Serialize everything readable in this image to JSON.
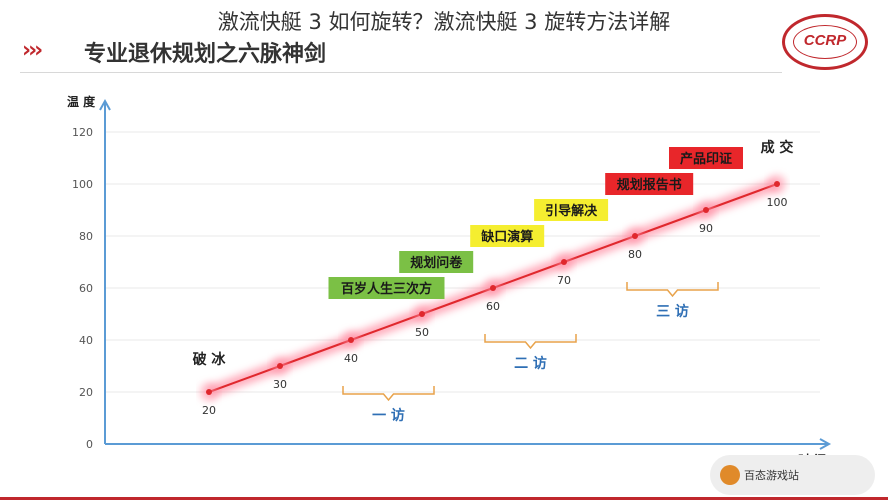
{
  "page": {
    "overlay_title": "激流快艇 3 如何旋转？激流快艇 3 旋转方法详解",
    "chevrons": "›››",
    "slide_title": "专业退休规划之六脉神剑",
    "logo_text": "CCRP",
    "watermark_text": "百态游戏站"
  },
  "colors": {
    "accent_red": "#c0282d",
    "line": "#e0282d",
    "glow": "#ff8aa0",
    "axis": "#5b9bd5",
    "bracket": "#e8a24a",
    "visit_text": "#2f6fb5",
    "grid": "#e8e8e8"
  },
  "chart_data": {
    "type": "line",
    "title": "",
    "xlabel": "时 间",
    "ylabel": "温 度",
    "ylim": [
      0,
      120
    ],
    "yticks": [
      0,
      20,
      40,
      60,
      80,
      100,
      120
    ],
    "grid": true,
    "points": [
      {
        "x": 1,
        "y": 20,
        "label": "20"
      },
      {
        "x": 2,
        "y": 30,
        "label": "30"
      },
      {
        "x": 3,
        "y": 40,
        "label": "40"
      },
      {
        "x": 4,
        "y": 50,
        "label": "50"
      },
      {
        "x": 5,
        "y": 60,
        "label": "60"
      },
      {
        "x": 6,
        "y": 70,
        "label": "70"
      },
      {
        "x": 7,
        "y": 80,
        "label": "80"
      },
      {
        "x": 8,
        "y": 90,
        "label": "90"
      },
      {
        "x": 9,
        "y": 100,
        "label": "100"
      }
    ],
    "stage_labels": [
      {
        "x": 1,
        "text": "破 冰"
      },
      {
        "x": 9,
        "text": "成 交"
      }
    ],
    "callouts": [
      {
        "x": 3.5,
        "y": 50,
        "text": "百岁人生三次方",
        "fill": "#7bc045",
        "color": "#1a1a1a"
      },
      {
        "x": 4.2,
        "y": 60,
        "text": "规划问卷",
        "fill": "#7bc045",
        "color": "#1a1a1a"
      },
      {
        "x": 5.2,
        "y": 70,
        "text": "缺口演算",
        "fill": "#f5ee30",
        "color": "#1a1a1a"
      },
      {
        "x": 6.1,
        "y": 80,
        "text": "引导解决",
        "fill": "#f5ee30",
        "color": "#1a1a1a"
      },
      {
        "x": 7.2,
        "y": 90,
        "text": "规划报告书",
        "fill": "#e8262a",
        "color": "#1a1a1a"
      },
      {
        "x": 8.0,
        "y": 100,
        "text": "产品印证",
        "fill": "#e8262a",
        "color": "#1a1a1a"
      }
    ],
    "visits": [
      {
        "from": 3,
        "to": 4,
        "text": "一 访"
      },
      {
        "from": 5,
        "to": 6,
        "text": "二 访"
      },
      {
        "from": 7,
        "to": 8,
        "text": "三 访"
      }
    ]
  }
}
